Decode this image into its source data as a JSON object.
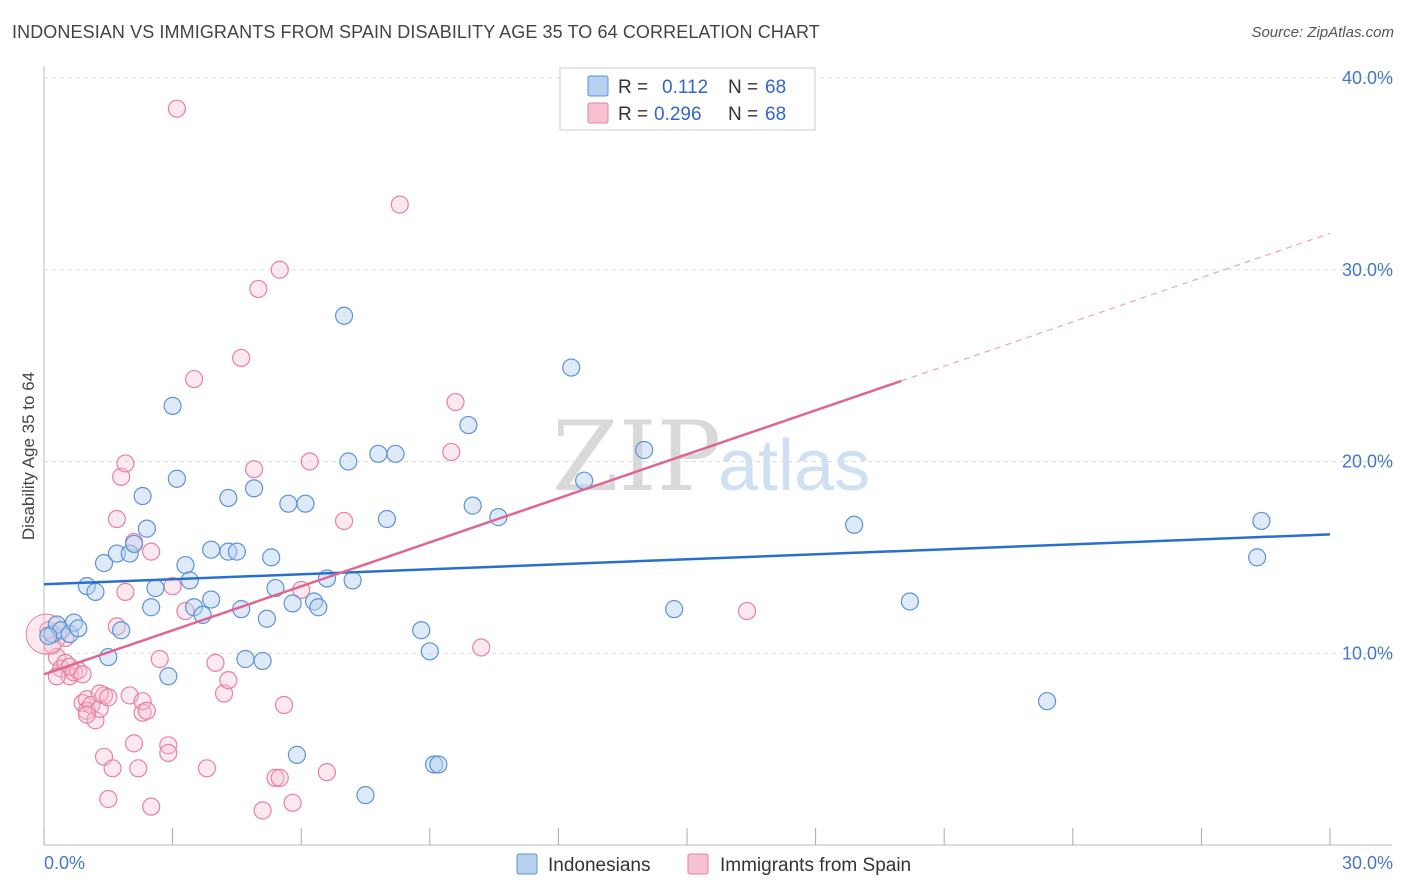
{
  "title": "INDONESIAN VS IMMIGRANTS FROM SPAIN DISABILITY AGE 35 TO 64 CORRELATION CHART",
  "source": "Source: ZipAtlas.com",
  "watermark": {
    "zip": "ZIP",
    "atlas": "atlas"
  },
  "colors": {
    "blue": "#5b93d9",
    "blue_line": "#2a6fcd",
    "blue_fill": "#b7d0f0",
    "pink": "#e8809f",
    "pink_line": "#e06690",
    "pink_fill": "#f6c1d1"
  },
  "legend": {
    "row1": {
      "r_label": "R =",
      "r_value": "0.112",
      "n_label": "N =",
      "n_value": "68"
    },
    "row2": {
      "r_label": "R =",
      "r_value": "0.296",
      "n_label": "N =",
      "n_value": "68"
    }
  },
  "bottom_legend": {
    "series1": "Indonesians",
    "series2": "Immigrants from Spain"
  },
  "chart_data": {
    "type": "scatter",
    "title": "INDONESIAN VS IMMIGRANTS FROM SPAIN DISABILITY AGE 35 TO 64 CORRELATION CHART",
    "xlabel": "",
    "ylabel": "Disability Age 35 to 64",
    "xlim": [
      0,
      30
    ],
    "ylim": [
      0,
      40
    ],
    "x_tick_labels": [
      "0.0%",
      "30.0%"
    ],
    "y_tick_values": [
      10,
      20,
      30,
      40
    ],
    "y_tick_labels": [
      "10.0%",
      "20.0%",
      "30.0%",
      "40.0%"
    ],
    "series": [
      {
        "name": "Indonesians",
        "color": "#5b93d9",
        "trend": {
          "x0": 0,
          "y0": 13.6,
          "x1": 30,
          "y1": 16.2
        },
        "points": [
          [
            0.2,
            11.0
          ],
          [
            0.3,
            11.5
          ],
          [
            0.4,
            11.2
          ],
          [
            0.6,
            11.0
          ],
          [
            0.7,
            11.6
          ],
          [
            0.8,
            11.3
          ],
          [
            1.0,
            13.5
          ],
          [
            1.2,
            13.2
          ],
          [
            1.4,
            14.7
          ],
          [
            1.5,
            9.8
          ],
          [
            1.8,
            11.2
          ],
          [
            1.7,
            15.2
          ],
          [
            2.0,
            15.2
          ],
          [
            2.1,
            15.7
          ],
          [
            2.3,
            18.2
          ],
          [
            2.4,
            16.5
          ],
          [
            2.5,
            12.4
          ],
          [
            2.6,
            13.4
          ],
          [
            2.9,
            8.8
          ],
          [
            3.0,
            22.9
          ],
          [
            3.1,
            19.1
          ],
          [
            3.3,
            14.6
          ],
          [
            3.4,
            13.8
          ],
          [
            3.5,
            12.4
          ],
          [
            3.7,
            12.0
          ],
          [
            3.9,
            12.8
          ],
          [
            3.9,
            15.4
          ],
          [
            4.3,
            18.1
          ],
          [
            4.3,
            15.3
          ],
          [
            4.5,
            15.3
          ],
          [
            4.6,
            12.3
          ],
          [
            4.7,
            9.7
          ],
          [
            4.9,
            18.6
          ],
          [
            5.1,
            9.6
          ],
          [
            5.2,
            11.8
          ],
          [
            5.3,
            15.0
          ],
          [
            5.4,
            13.4
          ],
          [
            5.7,
            17.8
          ],
          [
            5.8,
            12.6
          ],
          [
            5.9,
            4.7
          ],
          [
            6.1,
            17.8
          ],
          [
            6.3,
            12.7
          ],
          [
            6.4,
            12.4
          ],
          [
            6.6,
            13.9
          ],
          [
            7.0,
            27.6
          ],
          [
            7.1,
            20.0
          ],
          [
            7.2,
            13.8
          ],
          [
            7.5,
            2.6
          ],
          [
            7.8,
            20.4
          ],
          [
            8.0,
            17.0
          ],
          [
            8.2,
            20.4
          ],
          [
            8.8,
            11.2
          ],
          [
            9.0,
            10.1
          ],
          [
            9.1,
            4.2
          ],
          [
            9.2,
            4.2
          ],
          [
            9.9,
            21.9
          ],
          [
            10.0,
            17.7
          ],
          [
            10.6,
            17.1
          ],
          [
            12.3,
            24.9
          ],
          [
            12.6,
            19.0
          ],
          [
            14.0,
            20.6
          ],
          [
            14.7,
            12.3
          ],
          [
            18.9,
            16.7
          ],
          [
            20.2,
            12.7
          ],
          [
            23.4,
            7.5
          ],
          [
            28.3,
            15.0
          ],
          [
            28.4,
            16.9
          ],
          [
            0.1,
            10.9
          ]
        ]
      },
      {
        "name": "Immigrants from Spain",
        "color": "#e8809f",
        "trend": {
          "x0": 0,
          "y0": 8.9,
          "x1": 20,
          "y1": 24.2,
          "dash_x1": 30,
          "dash_y1": 31.9
        },
        "points": [
          [
            0.1,
            11.2
          ],
          [
            0.2,
            10.4
          ],
          [
            0.3,
            9.8
          ],
          [
            0.4,
            9.2
          ],
          [
            0.5,
            9.5
          ],
          [
            0.6,
            8.8
          ],
          [
            0.7,
            9.0
          ],
          [
            0.5,
            10.8
          ],
          [
            0.8,
            9.1
          ],
          [
            0.9,
            7.4
          ],
          [
            1.0,
            7.6
          ],
          [
            1.0,
            7.0
          ],
          [
            1.1,
            7.3
          ],
          [
            1.2,
            6.5
          ],
          [
            1.3,
            7.1
          ],
          [
            1.4,
            7.8
          ],
          [
            1.3,
            7.9
          ],
          [
            1.4,
            4.6
          ],
          [
            1.5,
            2.4
          ],
          [
            1.6,
            4.0
          ],
          [
            1.7,
            11.4
          ],
          [
            1.7,
            17.0
          ],
          [
            1.8,
            19.2
          ],
          [
            1.9,
            13.2
          ],
          [
            1.9,
            19.9
          ],
          [
            2.0,
            7.8
          ],
          [
            2.1,
            15.8
          ],
          [
            2.1,
            5.3
          ],
          [
            2.2,
            4.0
          ],
          [
            2.3,
            6.9
          ],
          [
            2.3,
            7.5
          ],
          [
            2.5,
            15.3
          ],
          [
            2.5,
            2.0
          ],
          [
            2.7,
            9.7
          ],
          [
            2.9,
            5.2
          ],
          [
            2.9,
            4.8
          ],
          [
            3.0,
            13.5
          ],
          [
            3.1,
            38.4
          ],
          [
            3.3,
            12.2
          ],
          [
            3.5,
            24.3
          ],
          [
            3.8,
            4.0
          ],
          [
            4.0,
            9.5
          ],
          [
            4.2,
            7.9
          ],
          [
            4.3,
            8.6
          ],
          [
            4.6,
            25.4
          ],
          [
            4.9,
            19.6
          ],
          [
            5.0,
            29.0
          ],
          [
            5.1,
            1.8
          ],
          [
            5.4,
            3.5
          ],
          [
            5.5,
            3.5
          ],
          [
            5.5,
            30.0
          ],
          [
            5.6,
            7.3
          ],
          [
            5.8,
            2.2
          ],
          [
            6.0,
            13.3
          ],
          [
            6.2,
            20.0
          ],
          [
            6.6,
            3.8
          ],
          [
            7.0,
            16.9
          ],
          [
            8.3,
            33.4
          ],
          [
            9.5,
            20.5
          ],
          [
            9.6,
            23.1
          ],
          [
            10.2,
            10.3
          ],
          [
            16.4,
            12.2
          ],
          [
            1.0,
            6.8
          ],
          [
            0.6,
            9.3
          ],
          [
            0.3,
            8.8
          ],
          [
            2.4,
            7.0
          ],
          [
            1.5,
            7.7
          ],
          [
            0.9,
            8.9
          ]
        ]
      }
    ]
  }
}
